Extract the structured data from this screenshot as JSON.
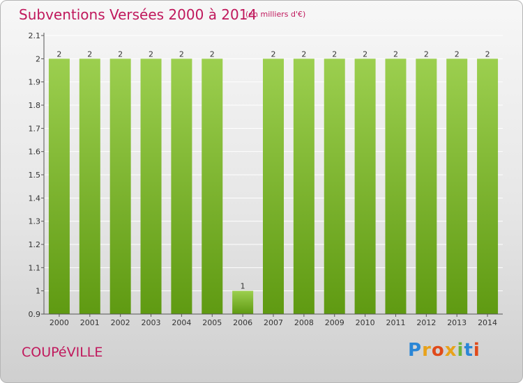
{
  "header": {
    "title": "Subventions Versées 2000 à 2014",
    "unit": "(en milliers d'€)"
  },
  "footer": {
    "commune": "COUPéVILLE",
    "logo": "Proxiti"
  },
  "colors": {
    "title": "#c0185c",
    "bar_top": "#9ccf4f",
    "bar_bottom": "#5f9a12",
    "grid": "#ffffff",
    "axis": "#555555"
  },
  "chart_data": {
    "type": "bar",
    "title": "Subventions Versées 2000 à 2014",
    "unit": "(en milliers d'€)",
    "xlabel": "",
    "ylabel": "",
    "categories": [
      "2000",
      "2001",
      "2002",
      "2003",
      "2004",
      "2005",
      "2006",
      "2007",
      "2008",
      "2009",
      "2010",
      "2011",
      "2012",
      "2013",
      "2014"
    ],
    "values": [
      2,
      2,
      2,
      2,
      2,
      2,
      1,
      2,
      2,
      2,
      2,
      2,
      2,
      2,
      2
    ],
    "data_labels": [
      "2",
      "2",
      "2",
      "2",
      "2",
      "2",
      "1",
      "2",
      "2",
      "2",
      "2",
      "2",
      "2",
      "2",
      "2"
    ],
    "ylim": [
      0.9,
      2.1
    ],
    "yticks": [
      0.9,
      1,
      1.1,
      1.2,
      1.3,
      1.4,
      1.5,
      1.6,
      1.7,
      1.8,
      1.9,
      2,
      2.1
    ],
    "ytick_labels": [
      "0.9",
      "1",
      "1.1",
      "1.2",
      "1.3",
      "1.4",
      "1.5",
      "1.6",
      "1.7",
      "1.8",
      "1.9",
      "2",
      "2.1"
    ],
    "grid": true,
    "grid_orientation": "horizontal",
    "legend": "none"
  }
}
